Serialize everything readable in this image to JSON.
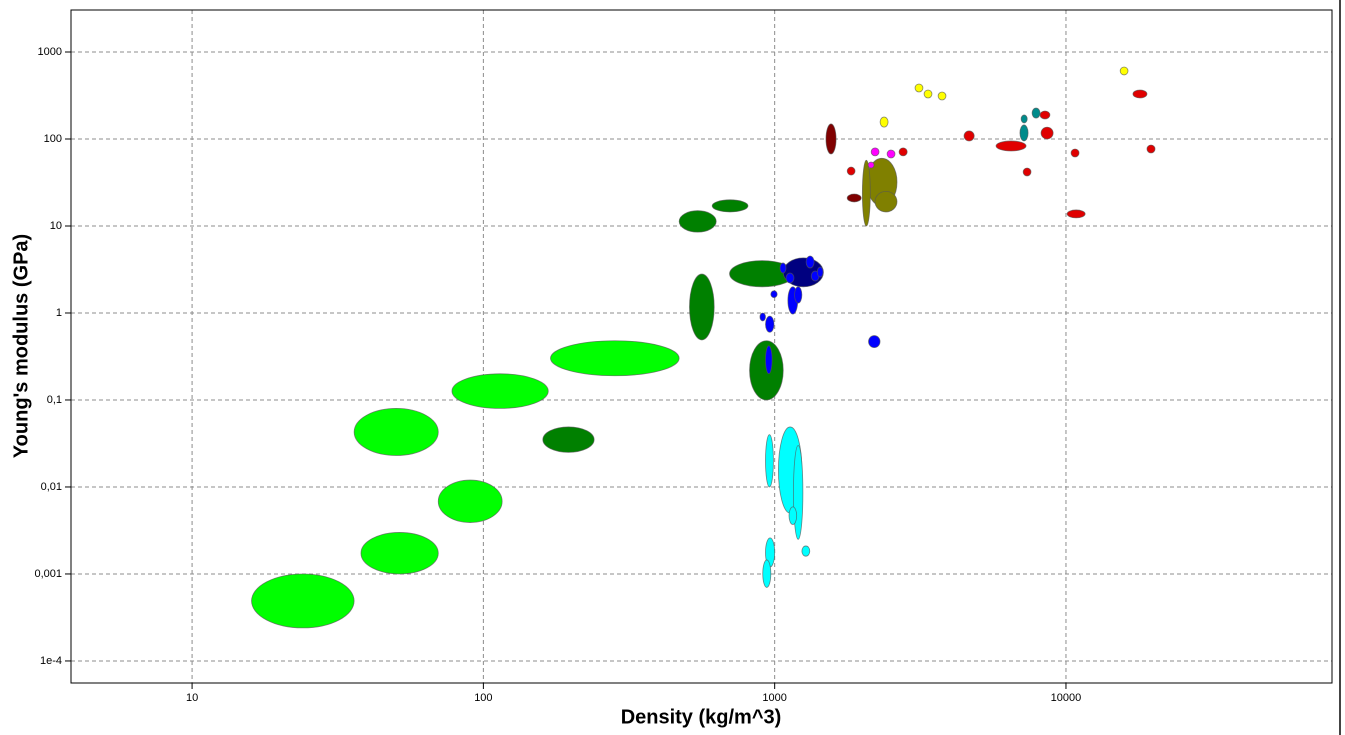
{
  "chart_data": {
    "type": "ellipse",
    "x_label": "Density (kg/m^3)",
    "y_label": "Young's modulus (GPa)",
    "xlog": true,
    "ylog": true,
    "grid": true,
    "xlim": [
      3.84,
      81900
    ],
    "ylim": [
      5.58e-05,
      3040
    ],
    "xticks": [
      10,
      100,
      1000,
      10000
    ],
    "yticks": [
      1000,
      100,
      10,
      1,
      {
        "value": 0.1,
        "label": "0,1"
      },
      {
        "value": 0.01,
        "label": "0,01"
      },
      {
        "value": 0.001,
        "label": "0,001"
      },
      {
        "value": 0.0001,
        "label": "1e-4"
      }
    ],
    "series": [
      {
        "color": "#00ff00",
        "x_ranges": [
          [
            16,
            36
          ],
          [
            38,
            70
          ],
          [
            70,
            116
          ],
          [
            36,
            70
          ],
          [
            78,
            167
          ],
          [
            170,
            470
          ]
        ],
        "y_ranges": [
          [
            0.00024,
            0.001
          ],
          [
            0.001,
            0.003
          ],
          [
            0.0039,
            0.012
          ],
          [
            0.023,
            0.08
          ],
          [
            0.08,
            0.2
          ],
          [
            0.19,
            0.48
          ]
        ]
      },
      {
        "color": "#008000",
        "x_ranges": [
          [
            160,
            240
          ],
          [
            820,
            1070
          ],
          [
            510,
            620
          ],
          [
            700,
            1170
          ],
          [
            470,
            630
          ],
          [
            610,
            810
          ]
        ],
        "y_ranges": [
          [
            0.025,
            0.049
          ],
          [
            0.1,
            0.48
          ],
          [
            0.49,
            2.8
          ],
          [
            2,
            4
          ],
          [
            8.5,
            15
          ],
          [
            14.5,
            20
          ]
        ]
      },
      {
        "color": "#00ffff",
        "x_ranges": [
          [
            930,
            990
          ],
          [
            1030,
            1240
          ],
          [
            1160,
            1250
          ],
          [
            1120,
            1190
          ],
          [
            1240,
            1320
          ],
          [
            930,
            1000
          ],
          [
            910,
            970
          ]
        ],
        "y_ranges": [
          [
            0.01,
            0.04
          ],
          [
            0.005,
            0.049
          ],
          [
            0.0025,
            0.03
          ],
          [
            0.0037,
            0.0059
          ],
          [
            0.0016,
            0.0021
          ],
          [
            0.0012,
            0.0026
          ],
          [
            0.0007,
            0.00145
          ]
        ]
      },
      {
        "color": "#000080",
        "x_ranges": [
          [
            1070,
            1470
          ]
        ],
        "y_ranges": [
          [
            2,
            4.3
          ]
        ]
      },
      {
        "color": "#0000ff",
        "x_ranges": [
          [
            930,
            980
          ],
          [
            930,
            995
          ],
          [
            890,
            930
          ],
          [
            970,
            1020
          ],
          [
            1110,
            1200
          ],
          [
            1170,
            1240
          ],
          [
            2100,
            2300
          ],
          [
            1043,
            1094
          ],
          [
            1094,
            1165
          ],
          [
            1282,
            1366
          ],
          [
            1335,
            1422
          ],
          [
            1400,
            1466
          ]
        ],
        "y_ranges": [
          [
            0.2,
            0.42
          ],
          [
            0.6,
            0.92
          ],
          [
            0.81,
            1
          ],
          [
            1.5,
            1.8
          ],
          [
            0.97,
            2.0
          ],
          [
            1.3,
            2.0
          ],
          [
            0.4,
            0.55
          ],
          [
            2.88,
            3.76
          ],
          [
            2.21,
            2.88
          ],
          [
            3.29,
            4.52
          ],
          [
            2.33,
            3.04
          ],
          [
            2.59,
            3.38
          ]
        ]
      },
      {
        "color": "#808000",
        "x_ranges": [
          [
            2070,
            2630
          ],
          [
            2000,
            2130
          ],
          [
            2210,
            2630
          ]
        ],
        "y_ranges": [
          [
            17,
            60
          ],
          [
            10,
            57
          ],
          [
            14.5,
            25
          ]
        ]
      },
      {
        "color": "#ff00ff",
        "x_ranges": [
          [
            2144,
            2282
          ],
          [
            2432,
            2589
          ],
          [
            2093,
            2194
          ]
        ],
        "y_ranges": [
          [
            64,
            79
          ],
          [
            60.5,
            74.8
          ],
          [
            46.4,
            54.4
          ]
        ]
      },
      {
        "color": "#ffff00",
        "x_ranges": [
          [
            2301,
            2451
          ],
          [
            3033,
            3228
          ],
          [
            3258,
            3467
          ],
          [
            3640,
            3873
          ],
          [
            15350,
            16330
          ]
        ],
        "y_ranges": [
          [
            137,
            179
          ],
          [
            347,
            429
          ],
          [
            296,
            366
          ],
          [
            281,
            347
          ],
          [
            545,
            673
          ]
        ]
      },
      {
        "color": "#800000",
        "x_ranges": [
          [
            1500,
            1625
          ],
          [
            1774,
            1982
          ]
        ],
        "y_ranges": [
          [
            67.3,
            149
          ],
          [
            18.9,
            23.3
          ]
        ]
      },
      {
        "color": "#e00000",
        "x_ranges": [
          [
            1774,
            1888
          ],
          [
            2673,
            2851
          ],
          [
            4467,
            4842
          ],
          [
            5754,
            7295
          ],
          [
            7129,
            7586
          ],
          [
            8147,
            8810
          ],
          [
            8212,
            9036
          ],
          [
            10410,
            11090
          ],
          [
            10090,
            11640
          ],
          [
            16980,
            18970
          ],
          [
            18970,
            20220
          ]
        ],
        "y_ranges": [
          [
            38.5,
            47.6
          ],
          [
            64,
            79
          ],
          [
            94.9,
            124
          ],
          [
            72.8,
            95
          ],
          [
            37.6,
            46.4
          ],
          [
            170,
            210
          ],
          [
            100,
            137
          ],
          [
            62.1,
            76.8
          ],
          [
            12.4,
            15.3
          ],
          [
            296,
            366
          ],
          [
            69,
            85.3
          ]
        ]
      },
      {
        "color": "#008b8b",
        "x_ranges": [
          [
            7015,
            7362
          ],
          [
            6950,
            7413
          ],
          [
            7650,
            8147
          ]
        ],
        "y_ranges": [
          [
            153,
            189
          ],
          [
            95,
            145
          ],
          [
            174,
            227
          ]
        ]
      }
    ]
  }
}
